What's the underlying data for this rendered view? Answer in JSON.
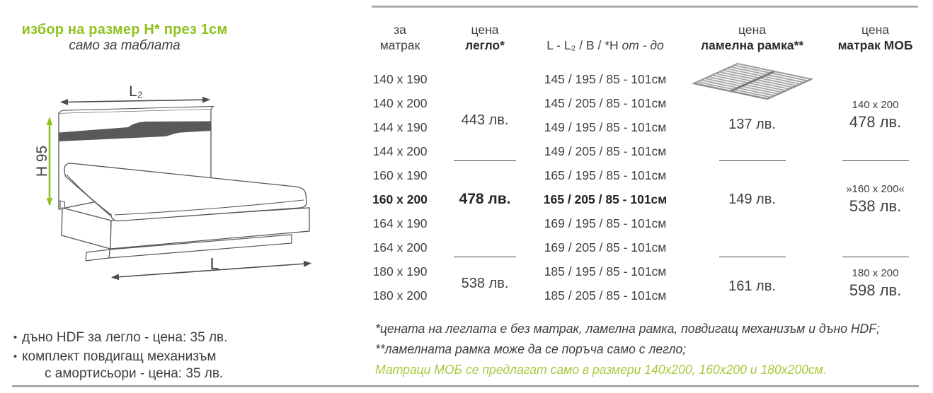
{
  "colors": {
    "accent_green": "#8fc11f",
    "note_green": "#a6ca3d",
    "text": "#3f3f41",
    "stripe_gray": "#58595b",
    "divider_gray": "#9b9b9b"
  },
  "title": {
    "text": "избор на размер H* през 1см",
    "subtitle": "само за таблата"
  },
  "diagram": {
    "width_label": "L₂",
    "height_label": "H 95",
    "length_label": "L"
  },
  "bullets": [
    {
      "lines": [
        "дъно HDF за легло - цена: 35 лв."
      ]
    },
    {
      "lines": [
        "комплект повдигащ механизъм",
        "с амортисьори - цена: 35 лв."
      ]
    }
  ],
  "table": {
    "headers": [
      {
        "top": "за",
        "bottom": "матрак",
        "bottom_bold": false
      },
      {
        "top": "цена",
        "bottom": "легло*",
        "bottom_bold": true
      },
      {
        "top": "",
        "bottom": "L - L₂ / B / *H ",
        "bottom_italic": "от - до",
        "bottom_bold": false
      },
      {
        "top": "цена",
        "bottom": "ламелна рамка**",
        "bottom_bold": true
      },
      {
        "top": "цена",
        "bottom": "матрак МОБ",
        "bottom_bold": true
      }
    ],
    "rows": [
      {
        "size": "140 x 190",
        "dims": "145 / 195 / 85 - 101см",
        "bold": false
      },
      {
        "size": "140 x 200",
        "dims": "145 / 205 / 85 - 101см",
        "bold": false
      },
      {
        "size": "144 x 190",
        "dims": "149 / 195 / 85 - 101см",
        "bold": false
      },
      {
        "size": "144 x 200",
        "dims": "149 / 205 / 85 - 101см",
        "bold": false
      },
      {
        "size": "160 x 190",
        "dims": "165 / 195 / 85 - 101см",
        "bold": false
      },
      {
        "size": "160 x 200",
        "dims": "165 / 205 / 85 - 101см",
        "bold": true
      },
      {
        "size": "164 x 190",
        "dims": "169 / 195 / 85 - 101см",
        "bold": false
      },
      {
        "size": "164 x 200",
        "dims": "169 / 205 / 85 - 101см",
        "bold": false
      },
      {
        "size": "180 x 190",
        "dims": "185 / 195 / 85 - 101см",
        "bold": false
      },
      {
        "size": "180 x 200",
        "dims": "185 / 205 / 85 - 101см",
        "bold": false
      }
    ],
    "groups": [
      {
        "bed_price": "443 лв.",
        "bold": false,
        "frame_price": "137 лв.",
        "has_frame_image": true,
        "mob_size": "140 x 200",
        "mob_price": "478 лв.",
        "rows": 4,
        "separator": true
      },
      {
        "bed_price": "478 лв.",
        "bold": true,
        "frame_price": "149 лв.",
        "has_frame_image": false,
        "mob_size": "»160 x 200«",
        "mob_price": "538 лв.",
        "rows": 4,
        "separator": true
      },
      {
        "bed_price": "538 лв.",
        "bold": false,
        "frame_price": "161 лв.",
        "has_frame_image": false,
        "mob_size": "180 x 200",
        "mob_price": "598 лв.",
        "rows": 2,
        "separator": false
      }
    ]
  },
  "notes": [
    {
      "text": "*цената на леглата е без матрак, ламелна рамка, повдигащ механизъм и дъно HDF;",
      "green": false
    },
    {
      "text": "**ламелната рамка може да се поръча само с легло;",
      "green": false
    },
    {
      "text": "Матраци МОБ се предлагат само в размери 140x200, 160x200 и 180x200см.",
      "green": true
    }
  ]
}
